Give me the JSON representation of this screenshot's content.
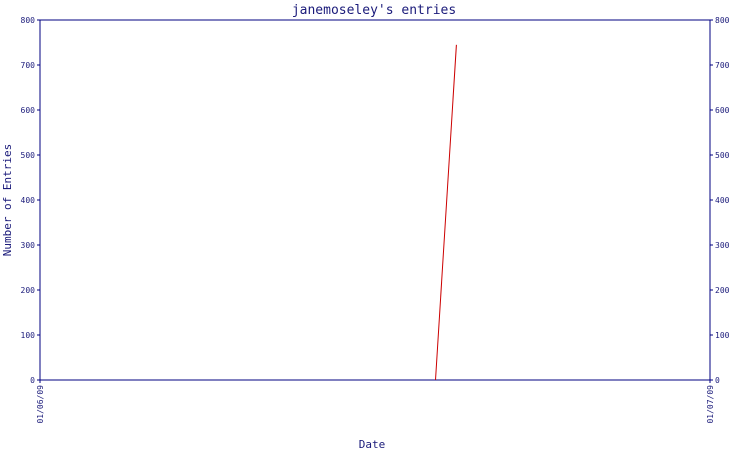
{
  "colors": {
    "axis": "#000080",
    "text": "#1a1a7a",
    "series": "#cc0000",
    "background": "#ffffff"
  },
  "chart_data": {
    "type": "line",
    "title": "janemoseley's entries",
    "xlabel": "Date",
    "ylabel": "Number of Entries",
    "ylim": [
      0,
      800
    ],
    "yticks": [
      0,
      100,
      200,
      300,
      400,
      500,
      600,
      700,
      800
    ],
    "yticks_right": true,
    "x_tick_labels": [
      "01/06/09",
      "01/07/09"
    ],
    "xlim": [
      "01/06/09",
      "01/07/09"
    ],
    "grid": false,
    "legend": "none",
    "series": [
      {
        "points": [
          {
            "x": "2009-01-06 14:10",
            "y": 0
          },
          {
            "x": "2009-01-06 14:55",
            "y": 745
          }
        ]
      }
    ]
  }
}
